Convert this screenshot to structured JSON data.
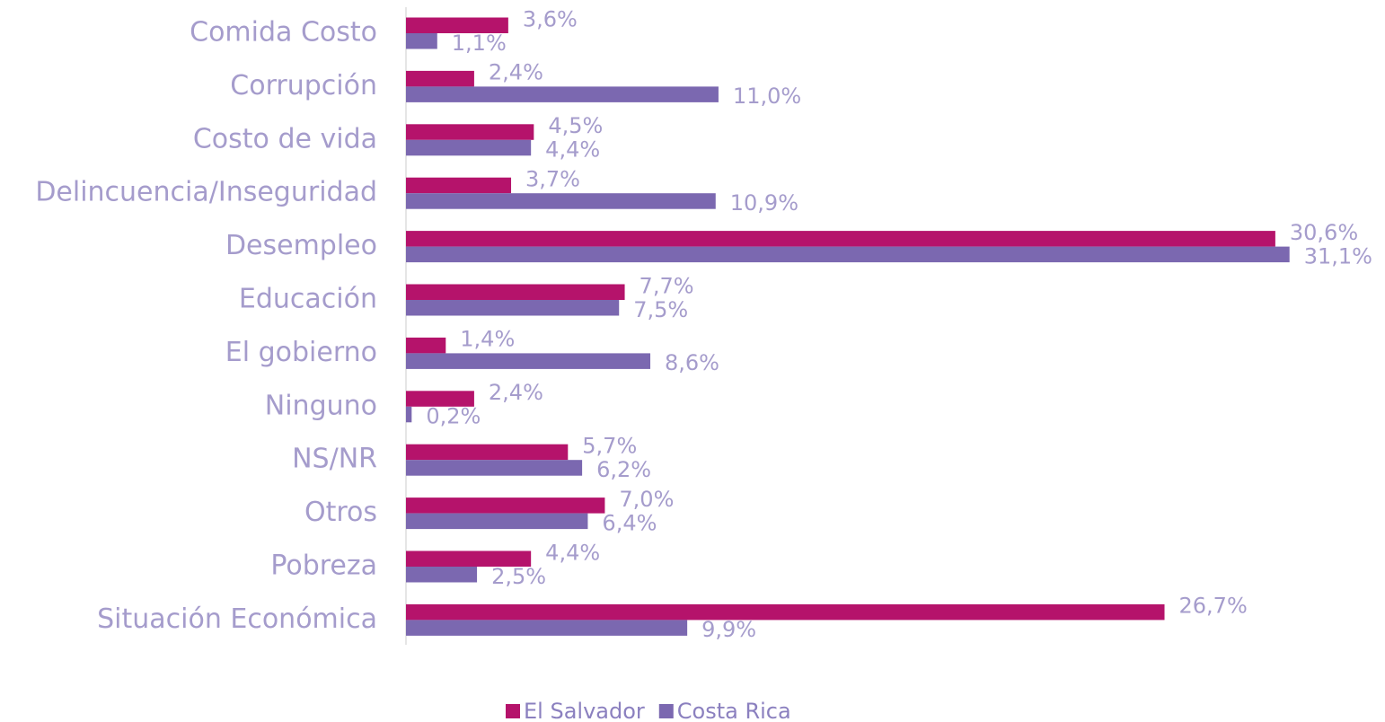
{
  "chart_data": {
    "type": "bar",
    "orientation": "horizontal",
    "categories": [
      "Comida Costo",
      "Corrupción",
      "Costo de vida",
      "Delincuencia/Inseguridad",
      "Desempleo",
      "Educación",
      "El gobierno",
      "Ninguno",
      "NS/NR ",
      "Otros",
      "Pobreza",
      "Situación Económica"
    ],
    "series": [
      {
        "name": "El Salvador",
        "color": "#b5136b",
        "values": [
          3.6,
          2.4,
          4.5,
          3.7,
          30.6,
          7.7,
          1.4,
          2.4,
          5.7,
          7.0,
          4.4,
          26.7
        ],
        "value_labels": [
          "3,6%",
          "2,4%",
          "4,5%",
          "3,7%",
          "30,6%",
          "7,7%",
          "1,4%",
          "2,4%",
          "5,7%",
          "7,0%",
          "4,4%",
          "26,7%"
        ]
      },
      {
        "name": "Costa Rica",
        "color": "#7b68b0",
        "values": [
          1.1,
          11.0,
          4.4,
          10.9,
          31.1,
          7.5,
          8.6,
          0.2,
          6.2,
          6.4,
          2.5,
          9.9
        ],
        "value_labels": [
          "1,1%",
          "11,0%",
          "4,4%",
          "10,9%",
          "31,1%",
          "7,5%",
          "8,6%",
          "0,2%",
          "6,2%",
          "6,4%",
          "2,5%",
          "9,9%"
        ]
      }
    ],
    "legend": "bottom"
  }
}
